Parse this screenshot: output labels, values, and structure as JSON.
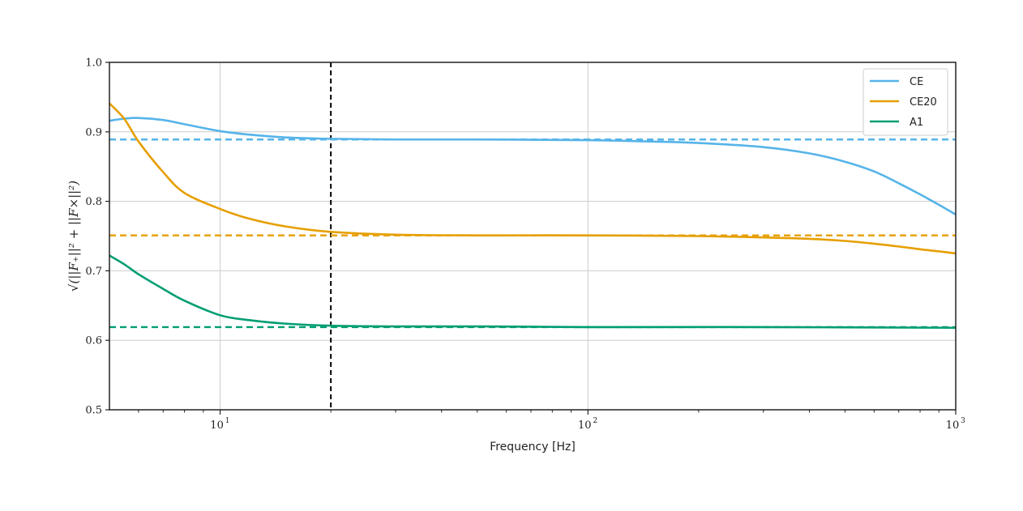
{
  "chart_data": {
    "type": "line",
    "xscale": "log",
    "xlim": [
      5,
      1000
    ],
    "ylim": [
      0.5,
      1.0
    ],
    "xlabel": "Frequency [Hz]",
    "ylabel": "√(||F₊||² + ||F×||²)",
    "grid": true,
    "legend_position": "top-right",
    "y_ticks": [
      "0.5",
      "0.6",
      "0.7",
      "0.8",
      "0.9",
      "1.0"
    ],
    "x_ticks": [
      {
        "value": 10,
        "base": "10",
        "exp": "1"
      },
      {
        "value": 100,
        "base": "10",
        "exp": "2"
      },
      {
        "value": 1000,
        "base": "10",
        "exp": "3"
      }
    ],
    "vline": {
      "x": 20,
      "style": "dashed",
      "color": "#000000"
    },
    "series": [
      {
        "name": "CE",
        "color": "#56B4E9",
        "asymptote": 0.889,
        "x": [
          5,
          5.5,
          6,
          7,
          8,
          10,
          12,
          15,
          20,
          30,
          50,
          100,
          150,
          200,
          300,
          400,
          500,
          600,
          700,
          800,
          900,
          1000
        ],
        "y": [
          0.916,
          0.919,
          0.92,
          0.917,
          0.911,
          0.901,
          0.896,
          0.892,
          0.89,
          0.889,
          0.889,
          0.888,
          0.886,
          0.884,
          0.878,
          0.869,
          0.857,
          0.843,
          0.826,
          0.81,
          0.795,
          0.781
        ]
      },
      {
        "name": "CE20",
        "color": "#E69F00",
        "asymptote": 0.751,
        "x": [
          5,
          5.5,
          6,
          7,
          8,
          10,
          12,
          15,
          20,
          30,
          50,
          100,
          200,
          300,
          400,
          500,
          600,
          700,
          800,
          900,
          1000
        ],
        "y": [
          0.941,
          0.918,
          0.886,
          0.842,
          0.812,
          0.789,
          0.775,
          0.764,
          0.756,
          0.752,
          0.751,
          0.751,
          0.75,
          0.748,
          0.746,
          0.743,
          0.739,
          0.735,
          0.731,
          0.728,
          0.725
        ]
      },
      {
        "name": "A1",
        "color": "#009E73",
        "asymptote": 0.619,
        "x": [
          5,
          5.5,
          6,
          7,
          8,
          10,
          12,
          15,
          20,
          30,
          50,
          100,
          300,
          1000
        ],
        "y": [
          0.722,
          0.709,
          0.695,
          0.674,
          0.657,
          0.636,
          0.629,
          0.624,
          0.621,
          0.62,
          0.62,
          0.619,
          0.619,
          0.618
        ]
      }
    ]
  }
}
